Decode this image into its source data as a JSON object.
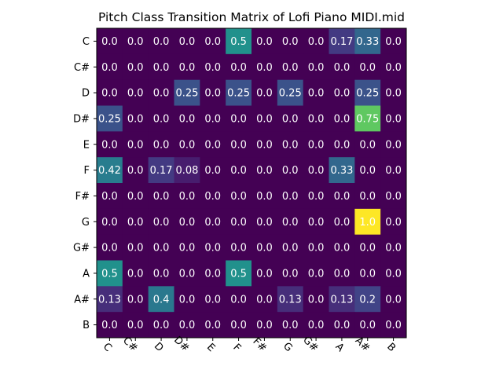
{
  "chart_data": {
    "type": "heatmap",
    "title": "Pitch Class Transition Matrix of Lofi Piano MIDI.mid",
    "x_labels": [
      "C",
      "C#",
      "D",
      "D#",
      "E",
      "F",
      "F#",
      "G",
      "G#",
      "A",
      "A#",
      "B"
    ],
    "y_labels": [
      "C",
      "C#",
      "D",
      "D#",
      "E",
      "F",
      "F#",
      "G",
      "G#",
      "A",
      "A#",
      "B"
    ],
    "value_range": [
      0,
      1
    ],
    "colormap": "viridis",
    "values": [
      [
        0.0,
        0.0,
        0.0,
        0.0,
        0.0,
        0.5,
        0.0,
        0.0,
        0.0,
        0.17,
        0.33,
        0.0
      ],
      [
        0.0,
        0.0,
        0.0,
        0.0,
        0.0,
        0.0,
        0.0,
        0.0,
        0.0,
        0.0,
        0.0,
        0.0
      ],
      [
        0.0,
        0.0,
        0.0,
        0.25,
        0.0,
        0.25,
        0.0,
        0.25,
        0.0,
        0.0,
        0.25,
        0.0
      ],
      [
        0.25,
        0.0,
        0.0,
        0.0,
        0.0,
        0.0,
        0.0,
        0.0,
        0.0,
        0.0,
        0.75,
        0.0
      ],
      [
        0.0,
        0.0,
        0.0,
        0.0,
        0.0,
        0.0,
        0.0,
        0.0,
        0.0,
        0.0,
        0.0,
        0.0
      ],
      [
        0.42,
        0.0,
        0.17,
        0.08,
        0.0,
        0.0,
        0.0,
        0.0,
        0.0,
        0.33,
        0.0,
        0.0
      ],
      [
        0.0,
        0.0,
        0.0,
        0.0,
        0.0,
        0.0,
        0.0,
        0.0,
        0.0,
        0.0,
        0.0,
        0.0
      ],
      [
        0.0,
        0.0,
        0.0,
        0.0,
        0.0,
        0.0,
        0.0,
        0.0,
        0.0,
        0.0,
        1.0,
        0.0
      ],
      [
        0.0,
        0.0,
        0.0,
        0.0,
        0.0,
        0.0,
        0.0,
        0.0,
        0.0,
        0.0,
        0.0,
        0.0
      ],
      [
        0.5,
        0.0,
        0.0,
        0.0,
        0.0,
        0.5,
        0.0,
        0.0,
        0.0,
        0.0,
        0.0,
        0.0
      ],
      [
        0.13,
        0.0,
        0.4,
        0.0,
        0.0,
        0.0,
        0.0,
        0.13,
        0.0,
        0.13,
        0.2,
        0.0
      ],
      [
        0.0,
        0.0,
        0.0,
        0.0,
        0.0,
        0.0,
        0.0,
        0.0,
        0.0,
        0.0,
        0.0,
        0.0
      ]
    ]
  }
}
